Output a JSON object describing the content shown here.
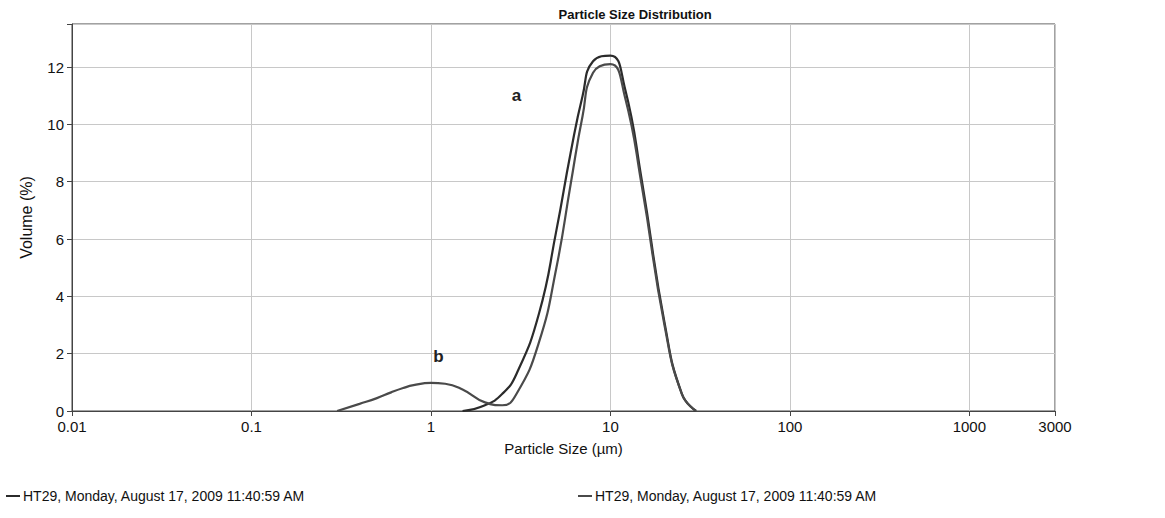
{
  "chart_data": {
    "type": "line",
    "title": "Particle Size Distribution",
    "x_label": "Particle Size (µm)",
    "y_label": "Volume (%)",
    "log": "x",
    "grid": true,
    "legend": "bottom",
    "x": [
      0.3,
      0.4,
      0.5,
      0.6,
      0.7,
      0.8,
      1,
      1.2,
      1.5,
      2,
      2.5,
      3,
      4,
      5,
      6,
      7,
      8,
      10,
      12,
      15,
      20,
      25,
      30
    ],
    "series": [
      {
        "name": "HT29, Monday, August 17, 2009 11:40:59 AM",
        "color": "#2b2b2b",
        "values": [
          null,
          null,
          null,
          null,
          null,
          null,
          null,
          null,
          0,
          0.2,
          0.6,
          1.3,
          3.4,
          6.3,
          9.0,
          11.0,
          12.2,
          12.4,
          11.3,
          8.0,
          3.1,
          0.6,
          0
        ]
      },
      {
        "name": "HT29, Monday, August 17, 2009 11:40:59 AM",
        "color": "#4a4a4a",
        "values": [
          0,
          0.25,
          0.45,
          0.65,
          0.8,
          0.9,
          0.98,
          0.95,
          0.75,
          0.3,
          0.2,
          0.6,
          2.4,
          5.0,
          7.9,
          10.3,
          11.8,
          12.1,
          11.0,
          7.8,
          3.0,
          0.6,
          0
        ]
      }
    ],
    "annotations": [
      {
        "text": "a",
        "x": 3,
        "y": 11
      },
      {
        "text": "b",
        "x": 1.1,
        "y": 1.9
      }
    ],
    "xlim": [
      0.01,
      3000
    ],
    "xticks": [
      0.01,
      0.1,
      1,
      10,
      100,
      1000,
      3000
    ],
    "ylim": [
      0,
      13.5
    ],
    "yticks": [
      0,
      2,
      4,
      6,
      8,
      10,
      12
    ]
  }
}
